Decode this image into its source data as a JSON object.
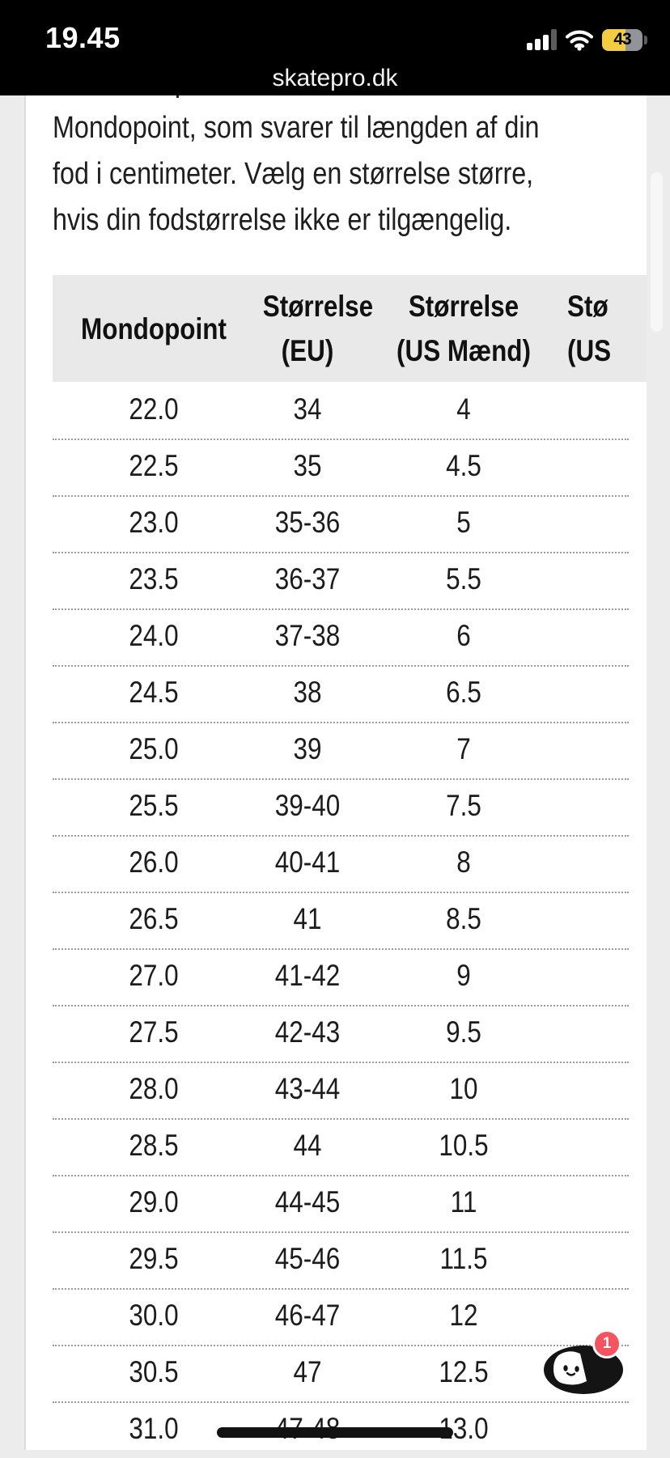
{
  "status_bar": {
    "time": "19.45",
    "url": "skatepro.dk",
    "battery_percent": "43",
    "icons": {
      "signal": "cellular-signal-icon",
      "wifi": "wifi-icon",
      "battery": "battery-icon"
    }
  },
  "intro": {
    "lines": [
      "Dalbello alpine skistøvler er målt i",
      "Mondopoint, som svarer til længden af din",
      "fod i centimeter. Vælg en størrelse større,",
      "hvis din fodstørrelse ikke er tilgængelig."
    ]
  },
  "size_table": {
    "headers": {
      "col1": "Mondopoint",
      "col2_line1": "Størrelse",
      "col2_line2": "(EU)",
      "col3_line1": "Størrelse",
      "col3_line2": "(US Mænd)",
      "col4_line1": "Stø",
      "col4_line2": "(US"
    },
    "rows": [
      [
        "22.0",
        "34",
        "4"
      ],
      [
        "22.5",
        "35",
        "4.5"
      ],
      [
        "23.0",
        "35-36",
        "5"
      ],
      [
        "23.5",
        "36-37",
        "5.5"
      ],
      [
        "24.0",
        "37-38",
        "6"
      ],
      [
        "24.5",
        "38",
        "6.5"
      ],
      [
        "25.0",
        "39",
        "7"
      ],
      [
        "25.5",
        "39-40",
        "7.5"
      ],
      [
        "26.0",
        "40-41",
        "8"
      ],
      [
        "26.5",
        "41",
        "8.5"
      ],
      [
        "27.0",
        "41-42",
        "9"
      ],
      [
        "27.5",
        "42-43",
        "9.5"
      ],
      [
        "28.0",
        "43-44",
        "10"
      ],
      [
        "28.5",
        "44",
        "10.5"
      ],
      [
        "29.0",
        "44-45",
        "11"
      ],
      [
        "29.5",
        "45-46",
        "11.5"
      ],
      [
        "30.0",
        "46-47",
        "12"
      ],
      [
        "30.5",
        "47",
        "12.5"
      ],
      [
        "31.0",
        "47-48",
        "13.0"
      ]
    ]
  },
  "chat": {
    "badge": "1"
  },
  "colors": {
    "badge_red": "#f4545f",
    "battery_yellow": "#f2cd42",
    "header_bg": "#e9e9e9",
    "page_margin_bg": "#ececec"
  }
}
